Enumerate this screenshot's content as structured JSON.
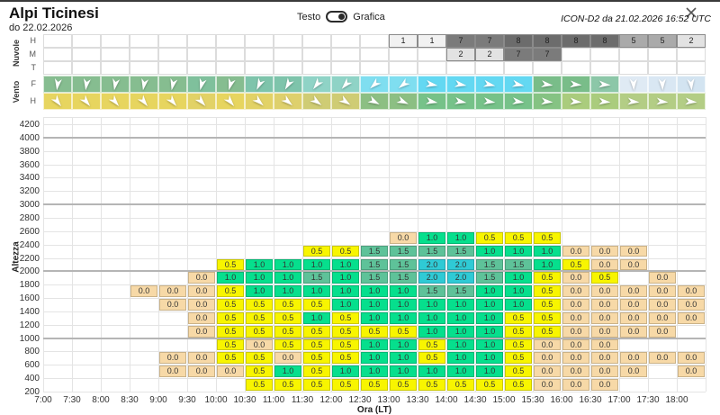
{
  "header": {
    "title": "Alpi Ticinesi",
    "subtitle": "do 22.02.2026",
    "model_info": "ICON-D2 da 21.02.2026 16:52 UTC"
  },
  "toggle": {
    "left_label": "Testo",
    "right_label": "Grafica",
    "state": "on"
  },
  "window": {
    "close_icon": "x"
  },
  "sections": {
    "clouds_label": "Nuvole",
    "wind_label": "Vento",
    "cloud_row_labels": [
      "H",
      "M",
      "T"
    ],
    "wind_row_labels": [
      "F",
      "H"
    ]
  },
  "chart_data": {
    "type": "heatmap",
    "title": "Alpi Ticinesi",
    "xlabel": "Ora (LT)",
    "ylabel": "Altezza",
    "x": [
      "7:00",
      "7:30",
      "8:00",
      "8:30",
      "9:00",
      "9:30",
      "10:00",
      "10:30",
      "11:00",
      "11:30",
      "12:00",
      "12:30",
      "13:00",
      "13:30",
      "14:00",
      "14:30",
      "15:00",
      "15:30",
      "16:00",
      "16:30",
      "17:00",
      "17:30",
      "18:00"
    ],
    "y_ticks": [
      200,
      400,
      600,
      800,
      1000,
      1200,
      1400,
      1600,
      1800,
      2000,
      2200,
      2400,
      2600,
      2800,
      3000,
      3200,
      3400,
      3600,
      3800,
      4000,
      4200
    ],
    "thick_gridlines": [
      1000,
      2000,
      3000,
      4000
    ],
    "value_colors": {
      "0": "#f7d9a7",
      "0.5": "#f8f500",
      "1": "#06df8d",
      "1.5": "#5ec299",
      "2": "#2fcad5"
    },
    "bands": [
      {
        "alt_top": 2600,
        "values": [
          null,
          null,
          null,
          null,
          null,
          null,
          null,
          null,
          null,
          null,
          null,
          null,
          0,
          1,
          1,
          0.5,
          0.5,
          0.5,
          null,
          null,
          null,
          null,
          null
        ]
      },
      {
        "alt_top": 2400,
        "values": [
          null,
          null,
          null,
          null,
          null,
          null,
          null,
          null,
          null,
          0.5,
          0.5,
          1.5,
          1.5,
          1.5,
          1.5,
          1,
          1,
          1,
          0,
          0,
          0,
          null,
          null
        ]
      },
      {
        "alt_top": 2200,
        "values": [
          null,
          null,
          null,
          null,
          null,
          null,
          0.5,
          1,
          1,
          1,
          1,
          1.5,
          1.5,
          2,
          2,
          1.5,
          1.5,
          1,
          0.5,
          0,
          0,
          null,
          null
        ]
      },
      {
        "alt_top": 2000,
        "values": [
          null,
          null,
          null,
          null,
          null,
          0,
          1,
          1,
          1,
          1.5,
          1,
          1.5,
          1.5,
          2,
          2,
          1.5,
          1,
          0.5,
          0,
          0.5,
          null,
          0,
          null
        ]
      },
      {
        "alt_top": 1800,
        "values": [
          null,
          null,
          null,
          0,
          0,
          0,
          0.5,
          1,
          1,
          1,
          1,
          1,
          1,
          1.5,
          1.5,
          1,
          1,
          0.5,
          0,
          0,
          0,
          0,
          0
        ]
      },
      {
        "alt_top": 1600,
        "values": [
          null,
          null,
          null,
          null,
          0,
          0,
          0.5,
          0.5,
          0.5,
          0.5,
          1,
          1,
          1,
          1,
          1,
          1,
          1,
          0.5,
          0,
          0,
          0,
          0,
          0
        ]
      },
      {
        "alt_top": 1400,
        "values": [
          null,
          null,
          null,
          null,
          null,
          0,
          0.5,
          0.5,
          0.5,
          1,
          0.5,
          1,
          1,
          1,
          1,
          1,
          0.5,
          0.5,
          0,
          0,
          0,
          0,
          0
        ]
      },
      {
        "alt_top": 1200,
        "values": [
          null,
          null,
          null,
          null,
          null,
          0,
          0.5,
          0.5,
          0.5,
          0.5,
          0.5,
          0.5,
          0.5,
          1,
          1,
          1,
          0.5,
          0.5,
          0,
          0,
          0,
          0,
          null
        ]
      },
      {
        "alt_top": 1000,
        "values": [
          null,
          null,
          null,
          null,
          null,
          null,
          0.5,
          0,
          0.5,
          0.5,
          0.5,
          1,
          1,
          0.5,
          1,
          1,
          0.5,
          0,
          0,
          0,
          null,
          null,
          null
        ]
      },
      {
        "alt_top": 800,
        "values": [
          null,
          null,
          null,
          null,
          0,
          0,
          0.5,
          0.5,
          0,
          0.5,
          0.5,
          1,
          1,
          0.5,
          1,
          1,
          0.5,
          0,
          0,
          0,
          0,
          0,
          0
        ]
      },
      {
        "alt_top": 600,
        "values": [
          null,
          null,
          null,
          null,
          0,
          0,
          0,
          0.5,
          1,
          0.5,
          1,
          1,
          1,
          1,
          1,
          1,
          0.5,
          0,
          0,
          0,
          0,
          null,
          0
        ]
      },
      {
        "alt_top": 400,
        "values": [
          null,
          null,
          null,
          null,
          null,
          null,
          null,
          0.5,
          0.5,
          0.5,
          0.5,
          0.5,
          0.5,
          0.5,
          0.5,
          0.5,
          0.5,
          0,
          0,
          0,
          null,
          null,
          null
        ]
      }
    ],
    "clouds": {
      "value_colors": {
        "1": "#f1f1f1",
        "2": "#e2e2e2",
        "5": "#aaaaaa",
        "7": "#7b7b7b",
        "8": "#6c6c6c"
      },
      "rows": [
        {
          "label": "H",
          "values": [
            null,
            null,
            null,
            null,
            null,
            null,
            null,
            null,
            null,
            null,
            null,
            null,
            1,
            1,
            7,
            7,
            8,
            8,
            8,
            8,
            5,
            5,
            2
          ]
        },
        {
          "label": "M",
          "values": [
            null,
            null,
            null,
            null,
            null,
            null,
            null,
            null,
            null,
            null,
            null,
            null,
            null,
            null,
            2,
            2,
            7,
            7,
            null,
            null,
            null,
            null,
            null
          ]
        },
        {
          "label": "T",
          "values": [
            null,
            null,
            null,
            null,
            null,
            null,
            null,
            null,
            null,
            null,
            null,
            null,
            null,
            null,
            null,
            null,
            null,
            null,
            null,
            null,
            null,
            null,
            null
          ]
        }
      ]
    },
    "wind": {
      "rows": [
        {
          "label": "F",
          "colors": [
            "#86bd90",
            "#86bd90",
            "#86bd90",
            "#86bd90",
            "#86bd90",
            "#7fc09c",
            "#86bd90",
            "#7ec4ab",
            "#7ec4ab",
            "#8fd3c6",
            "#8fd3c6",
            "#7fdef0",
            "#7fdef0",
            "#63d8f2",
            "#63d8f2",
            "#63d8f2",
            "#63d8f2",
            "#79bd89",
            "#79bd89",
            "#8cc7a8",
            "#dfeaf4",
            "#d9e7f3",
            "#d3e4f1"
          ],
          "dirs": [
            188,
            188,
            190,
            190,
            192,
            195,
            196,
            205,
            210,
            218,
            222,
            228,
            232,
            100,
            100,
            102,
            102,
            98,
            96,
            95,
            178,
            178,
            175
          ]
        },
        {
          "label": "H",
          "colors": [
            "#e7d55f",
            "#e7d55f",
            "#e7d55f",
            "#e7d55f",
            "#e7d55f",
            "#e2d266",
            "#e7d55f",
            "#e2d266",
            "#ded06c",
            "#cfcc74",
            "#cfcc74",
            "#8cbf83",
            "#8cbf83",
            "#76c289",
            "#76c289",
            "#76c289",
            "#76c289",
            "#85c383",
            "#aacc7d",
            "#aacc7d",
            "#b3cd85",
            "#b3cd85",
            "#b3cd85"
          ],
          "dirs": [
            142,
            140,
            140,
            142,
            140,
            138,
            140,
            132,
            130,
            126,
            124,
            118,
            114,
            100,
            100,
            98,
            98,
            96,
            95,
            95,
            95,
            95,
            95
          ]
        }
      ]
    }
  }
}
